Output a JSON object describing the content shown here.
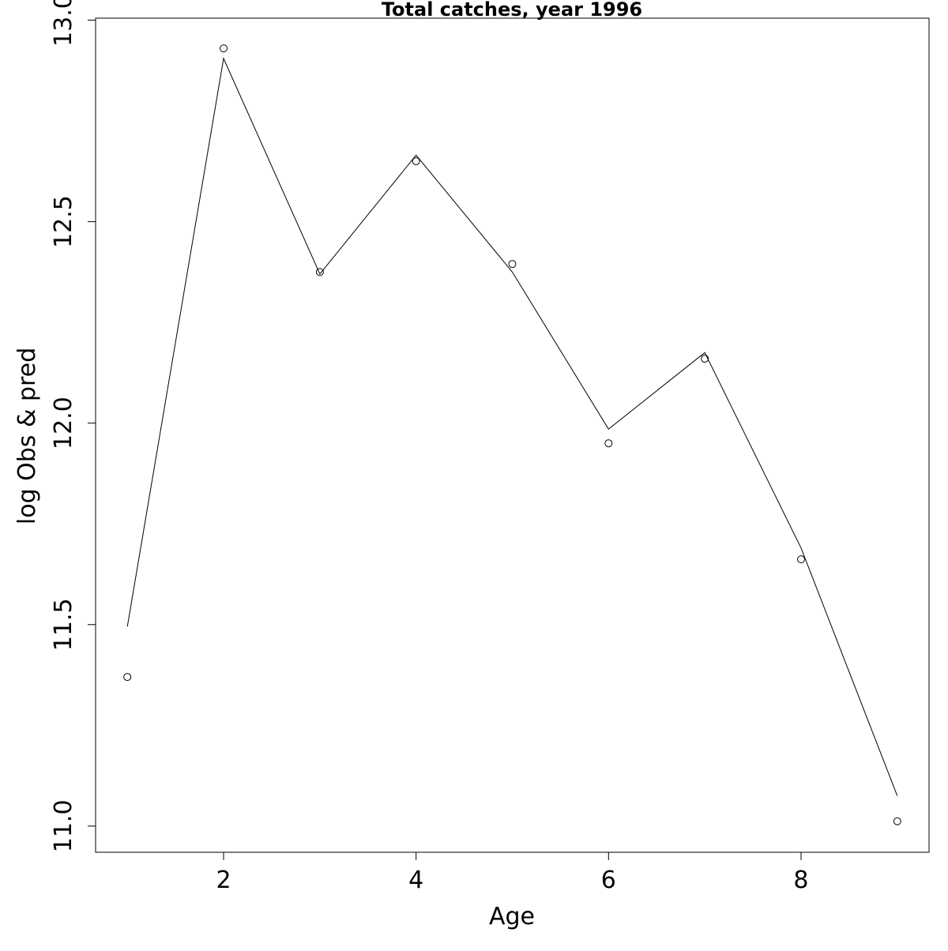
{
  "chart_data": {
    "type": "line",
    "title": "Total catches, year 1996",
    "xlabel": "Age",
    "ylabel": "log Obs & pred",
    "xlim": [
      0.67,
      9.33
    ],
    "ylim": [
      10.935,
      13.005
    ],
    "x_ticks": [
      2,
      4,
      6,
      8
    ],
    "x_tick_labels": [
      "2",
      "4",
      "6",
      "8"
    ],
    "y_ticks": [
      11.0,
      11.5,
      12.0,
      12.5,
      13.0
    ],
    "y_tick_labels": [
      "11.0",
      "11.5",
      "12.0",
      "12.5",
      "13.0"
    ],
    "grid": false,
    "legend": "none",
    "line_color": "#000000",
    "series": [
      {
        "kind": "points",
        "x": [
          1,
          2,
          3,
          4,
          5,
          6,
          7,
          8,
          9
        ],
        "y": [
          11.37,
          12.93,
          12.375,
          12.65,
          12.395,
          11.95,
          12.16,
          11.662,
          11.012
        ]
      },
      {
        "kind": "line",
        "x": [
          1,
          2,
          3,
          4,
          5,
          6,
          7,
          8,
          9
        ],
        "y": [
          11.495,
          12.905,
          12.37,
          12.665,
          12.375,
          11.985,
          12.175,
          11.69,
          11.075
        ]
      }
    ]
  }
}
